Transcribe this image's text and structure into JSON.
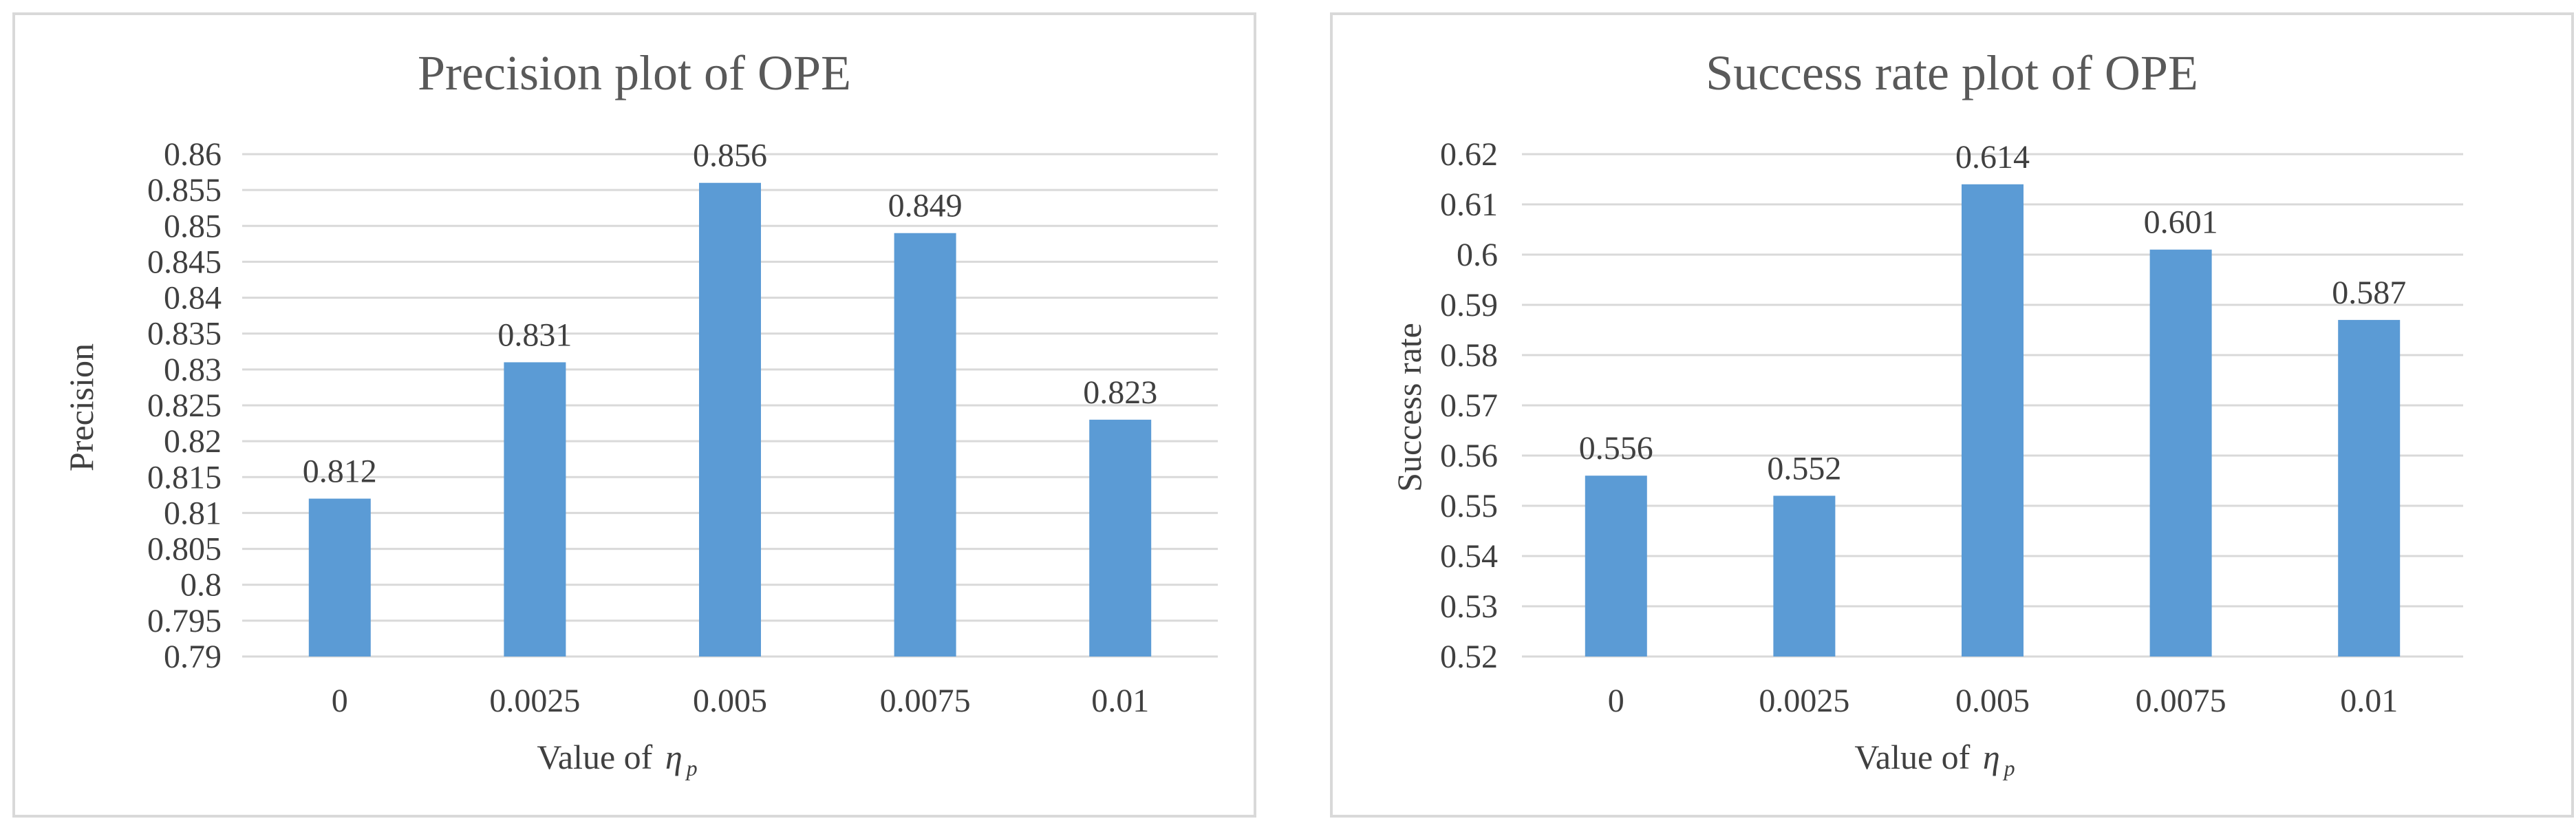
{
  "chart_data": [
    {
      "type": "bar",
      "title": "Precision plot of OPE",
      "xlabel_prefix": "Value of",
      "xlabel_symbol": "η",
      "xlabel_subscript": "p",
      "ylabel": "Precision",
      "categories": [
        "0",
        "0.0025",
        "0.005",
        "0.0075",
        "0.01"
      ],
      "values": [
        0.812,
        0.831,
        0.856,
        0.849,
        0.823
      ],
      "value_labels": [
        "0.812",
        "0.831",
        "0.856",
        "0.849",
        "0.823"
      ],
      "ylim": [
        0.79,
        0.86
      ],
      "yticks": [
        "0.79",
        "0.795",
        "0.8",
        "0.805",
        "0.81",
        "0.815",
        "0.82",
        "0.825",
        "0.83",
        "0.835",
        "0.84",
        "0.845",
        "0.85",
        "0.855",
        "0.86"
      ],
      "grid": true,
      "legend": "none",
      "bar_color": "#5b9bd5"
    },
    {
      "type": "bar",
      "title": "Success rate plot of OPE",
      "xlabel_prefix": "Value of",
      "xlabel_symbol": "η",
      "xlabel_subscript": "p",
      "ylabel": "Success rate",
      "categories": [
        "0",
        "0.0025",
        "0.005",
        "0.0075",
        "0.01"
      ],
      "values": [
        0.556,
        0.552,
        0.614,
        0.601,
        0.587
      ],
      "value_labels": [
        "0.556",
        "0.552",
        "0.614",
        "0.601",
        "0.587"
      ],
      "ylim": [
        0.52,
        0.62
      ],
      "yticks": [
        "0.52",
        "0.53",
        "0.54",
        "0.55",
        "0.56",
        "0.57",
        "0.58",
        "0.59",
        "0.6",
        "0.61",
        "0.62"
      ],
      "grid": true,
      "legend": "none",
      "bar_color": "#5b9bd5"
    }
  ]
}
